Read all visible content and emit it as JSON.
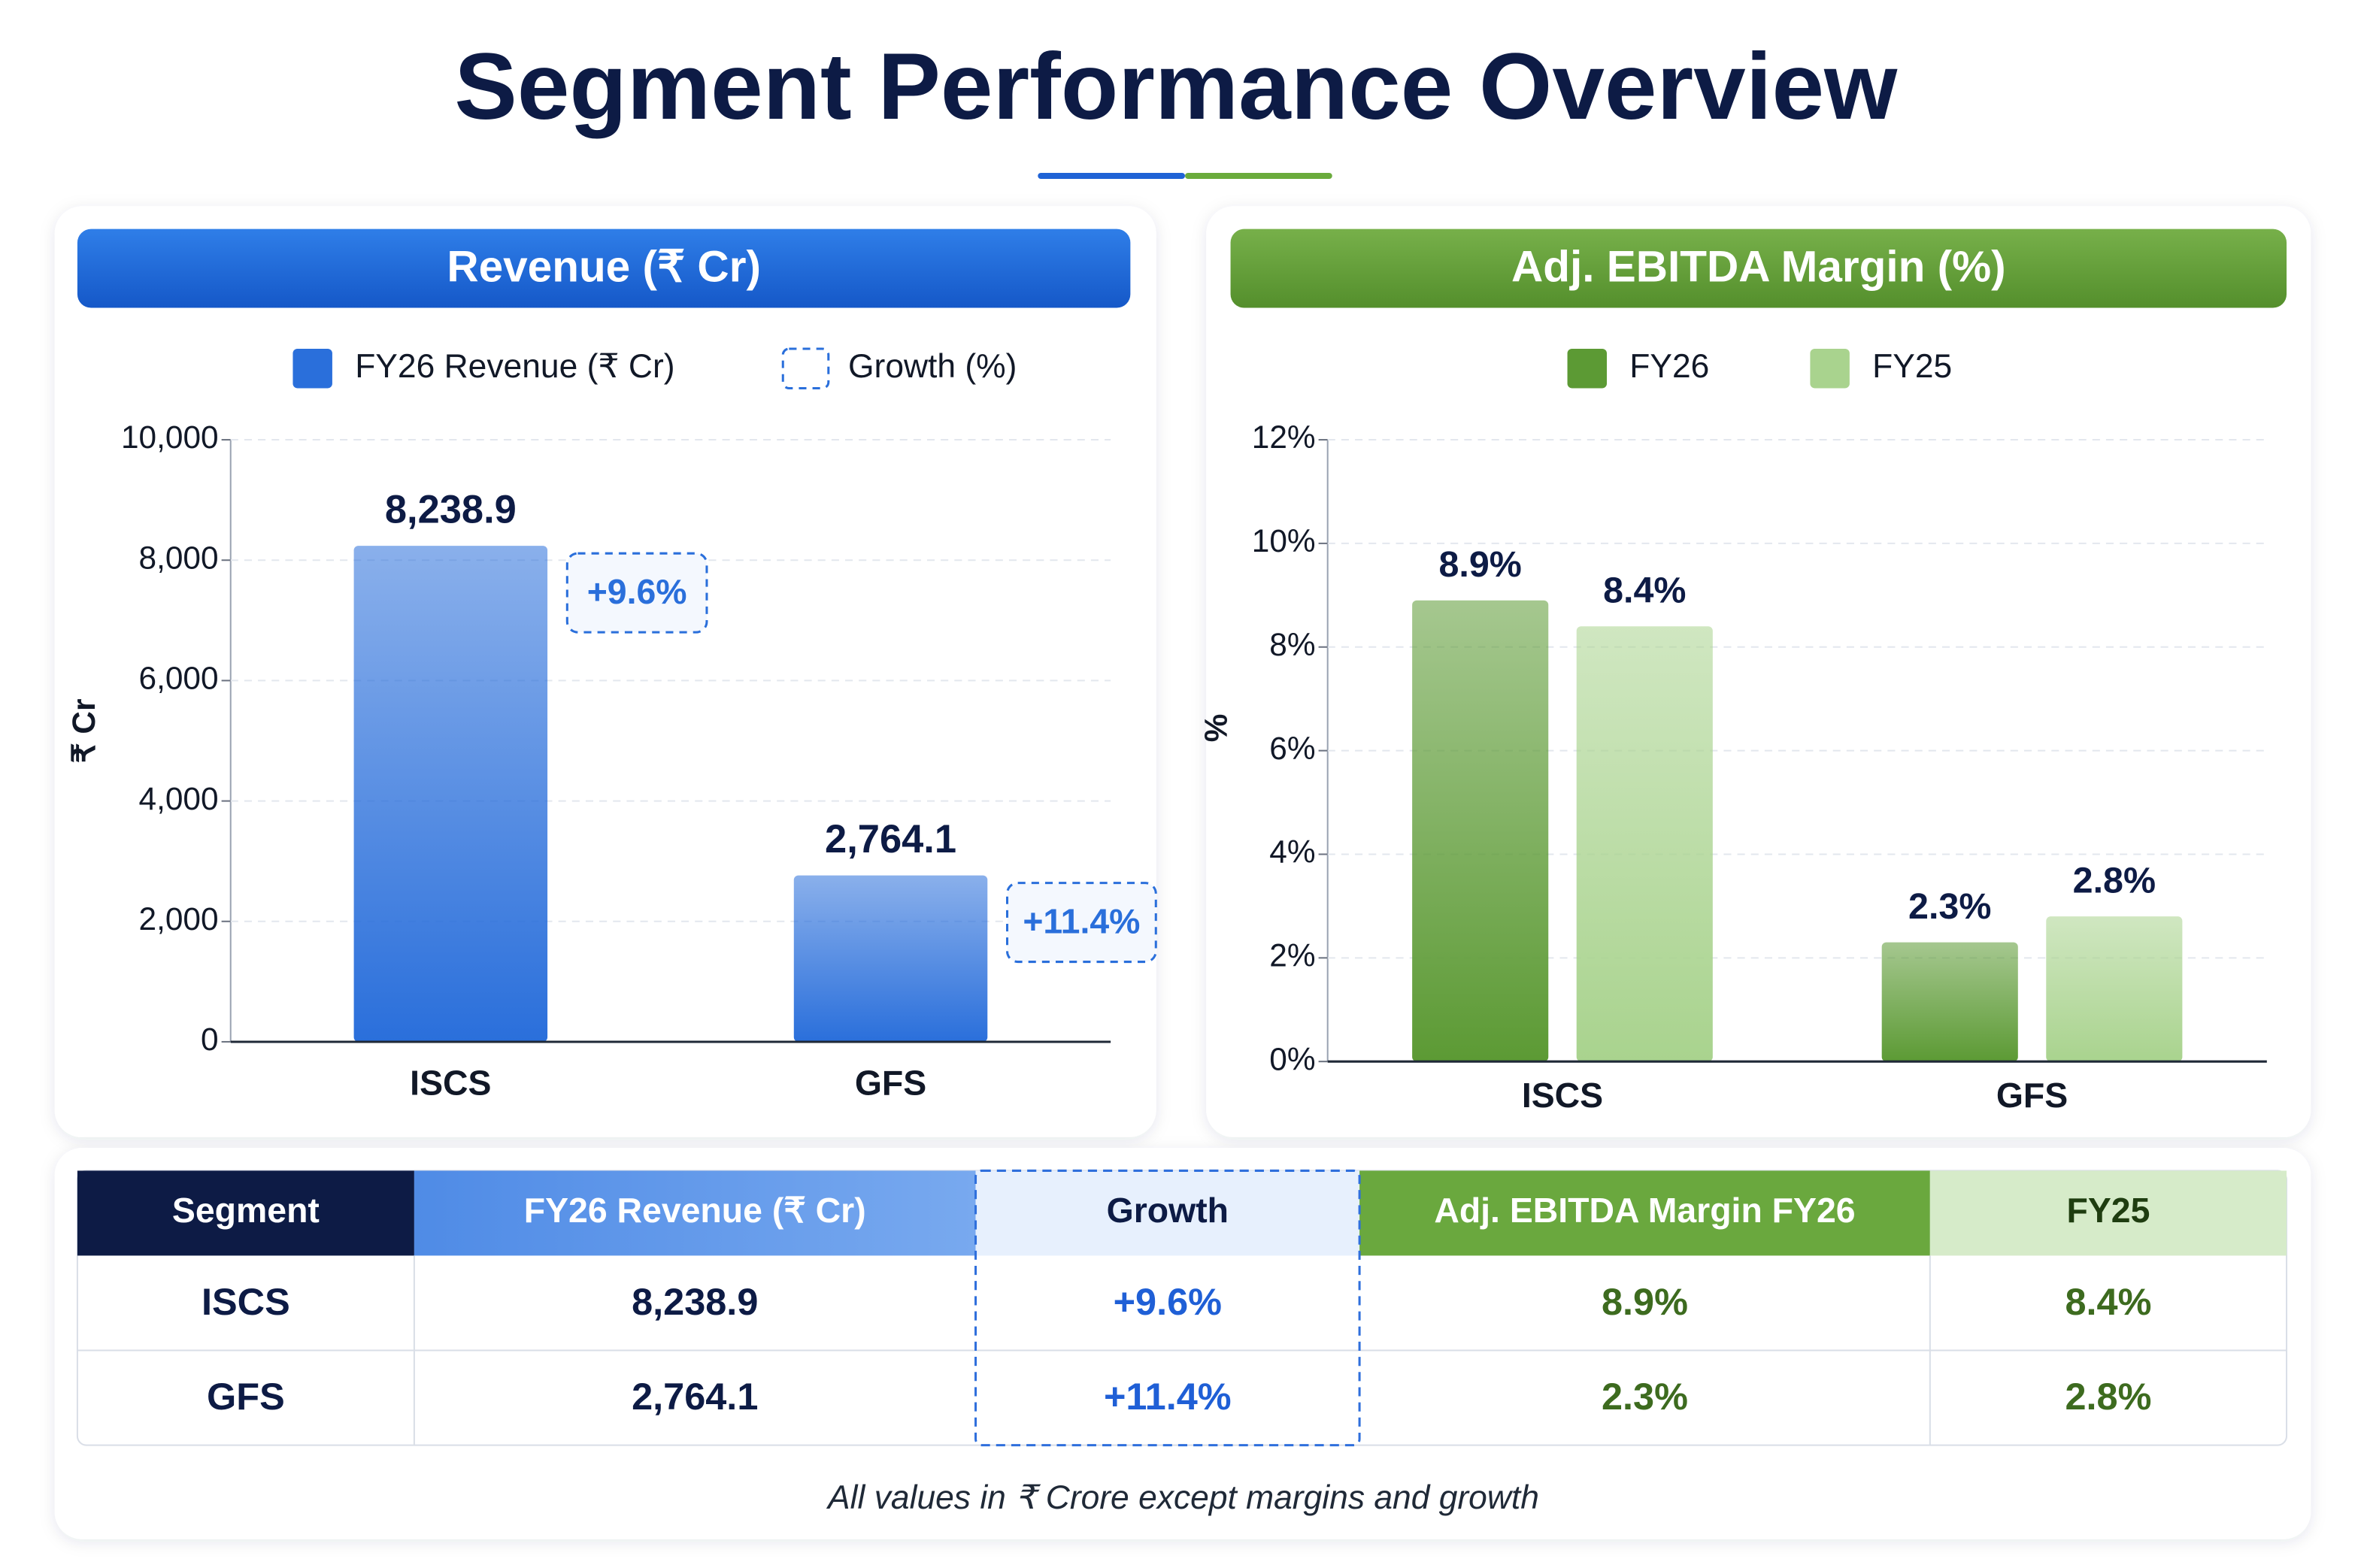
{
  "title": "Segment Performance Overview",
  "chart_data": [
    {
      "type": "bar",
      "title": "Revenue (₹ Cr)",
      "y_label": "₹ Cr",
      "categories": [
        "ISCS",
        "GFS"
      ],
      "series": [
        {
          "name": "FY26 Revenue (₹ Cr)",
          "color": "#2a6fdb",
          "values": [
            8238.9,
            2764.1
          ],
          "value_labels": [
            "8,238.9",
            "2,764.1"
          ]
        }
      ],
      "growth": {
        "name": "Growth (%)",
        "color": "#2a6fdb",
        "values": [
          9.6,
          11.4
        ],
        "value_labels": [
          "+9.6%",
          "+11.4%"
        ]
      },
      "ylim": [
        0,
        10000
      ],
      "yticks": [
        0,
        {
          "value": 2000,
          "label": "2,000"
        },
        {
          "value": 4000,
          "label": "4,000"
        },
        {
          "value": 6000,
          "label": "6,000"
        },
        {
          "value": 8000,
          "label": "8,000"
        },
        {
          "value": 10000,
          "label": "10,000"
        }
      ],
      "grid": true
    },
    {
      "type": "bar",
      "title": "Adj. EBITDA Margin (%)",
      "y_label": "%",
      "categories": [
        "ISCS",
        "GFS"
      ],
      "series": [
        {
          "name": "FY26",
          "color": "#5c9a34",
          "values": [
            8.9,
            2.3
          ],
          "value_labels": [
            "8.9%",
            "2.3%"
          ]
        },
        {
          "name": "FY25",
          "color": "#a9d38e",
          "values": [
            8.4,
            2.8
          ],
          "value_labels": [
            "8.4%",
            "2.8%"
          ]
        }
      ],
      "ylim": [
        0,
        12
      ],
      "yticks": [
        {
          "value": 0,
          "label": "0%"
        },
        {
          "value": 2,
          "label": "2%"
        },
        {
          "value": 4,
          "label": "4%"
        },
        {
          "value": 6,
          "label": "6%"
        },
        {
          "value": 8,
          "label": "8%"
        },
        {
          "value": 10,
          "label": "10%"
        },
        {
          "value": 12,
          "label": "12%"
        }
      ],
      "grid": true
    }
  ],
  "table": {
    "header": [
      "Segment",
      "FY26 Revenue (₹ Cr)",
      "Growth",
      "Adj. EBITDA Margin FY26",
      "FY25"
    ],
    "rows": [
      [
        "ISCS",
        "8,238.9",
        "+9.6%",
        "8.9%",
        "8.4%"
      ],
      [
        "GFS",
        "2,764.1",
        "+11.4%",
        "2.3%",
        "2.8%"
      ]
    ]
  },
  "footnote": "All values in ₹ Crore except margins and growth"
}
